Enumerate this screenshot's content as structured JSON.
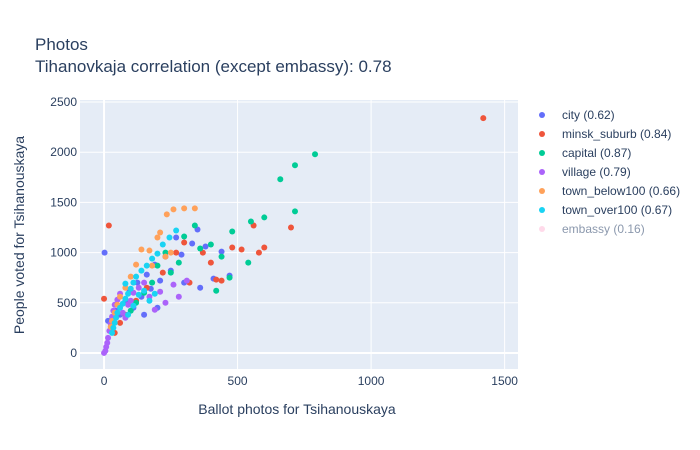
{
  "chart_data": {
    "type": "scatter",
    "title": "Photos",
    "subtitle": "Tihanovkaja correlation (except embassy): 0.78",
    "xlabel": "Ballot photos for Tsihanouskaya",
    "ylabel": "People voted for Tsihanouskaya",
    "xlim": [
      -90,
      1550
    ],
    "ylim": [
      -160,
      2520
    ],
    "x_ticks": [
      0,
      500,
      1000,
      1500
    ],
    "y_ticks": [
      0,
      500,
      1000,
      1500,
      2000,
      2500
    ],
    "grid": true,
    "legend_position": "right",
    "series": [
      {
        "name": "city (0.62)",
        "color": "#636efa",
        "visible": true,
        "points": [
          [
            2,
            1000
          ],
          [
            15,
            320
          ],
          [
            30,
            250
          ],
          [
            45,
            420
          ],
          [
            60,
            380
          ],
          [
            80,
            520
          ],
          [
            95,
            610
          ],
          [
            110,
            450
          ],
          [
            125,
            700
          ],
          [
            140,
            560
          ],
          [
            160,
            780
          ],
          [
            175,
            640
          ],
          [
            190,
            880
          ],
          [
            210,
            720
          ],
          [
            230,
            960
          ],
          [
            250,
            820
          ],
          [
            270,
            1150
          ],
          [
            290,
            980
          ],
          [
            330,
            1090
          ],
          [
            350,
            1230
          ],
          [
            380,
            1060
          ],
          [
            410,
            740
          ],
          [
            440,
            1010
          ],
          [
            470,
            770
          ],
          [
            360,
            650
          ],
          [
            300,
            700
          ],
          [
            200,
            450
          ],
          [
            150,
            380
          ]
        ]
      },
      {
        "name": "minsk_suburb (0.84)",
        "color": "#ef553b",
        "visible": true,
        "points": [
          [
            1420,
            2340
          ],
          [
            18,
            1270
          ],
          [
            0,
            540
          ],
          [
            700,
            1250
          ],
          [
            600,
            1050
          ],
          [
            580,
            1000
          ],
          [
            515,
            1030
          ],
          [
            560,
            1270
          ],
          [
            480,
            1050
          ],
          [
            440,
            720
          ],
          [
            420,
            730
          ],
          [
            400,
            900
          ],
          [
            370,
            1000
          ],
          [
            320,
            700
          ],
          [
            300,
            1100
          ],
          [
            270,
            1000
          ],
          [
            220,
            800
          ],
          [
            160,
            650
          ],
          [
            120,
            520
          ],
          [
            80,
            380
          ],
          [
            60,
            300
          ],
          [
            40,
            200
          ]
        ]
      },
      {
        "name": "capital (0.87)",
        "color": "#00cc96",
        "visible": true,
        "points": [
          [
            790,
            1980
          ],
          [
            715,
            1870
          ],
          [
            660,
            1730
          ],
          [
            715,
            1410
          ],
          [
            600,
            1350
          ],
          [
            550,
            1310
          ],
          [
            540,
            900
          ],
          [
            480,
            1210
          ],
          [
            470,
            750
          ],
          [
            440,
            960
          ],
          [
            400,
            1080
          ],
          [
            360,
            1040
          ],
          [
            340,
            1270
          ],
          [
            300,
            1160
          ],
          [
            280,
            900
          ],
          [
            250,
            800
          ],
          [
            230,
            1000
          ],
          [
            200,
            870
          ],
          [
            180,
            700
          ],
          [
            150,
            600
          ],
          [
            120,
            500
          ],
          [
            100,
            420
          ],
          [
            420,
            620
          ]
        ]
      },
      {
        "name": "village (0.79)",
        "color": "#ab63fa",
        "visible": true,
        "points": [
          [
            0,
            0
          ],
          [
            5,
            20
          ],
          [
            8,
            60
          ],
          [
            12,
            100
          ],
          [
            15,
            150
          ],
          [
            20,
            220
          ],
          [
            25,
            290
          ],
          [
            30,
            360
          ],
          [
            35,
            420
          ],
          [
            40,
            480
          ],
          [
            50,
            530
          ],
          [
            60,
            590
          ],
          [
            70,
            400
          ],
          [
            80,
            350
          ],
          [
            90,
            480
          ],
          [
            100,
            520
          ],
          [
            110,
            600
          ],
          [
            130,
            650
          ],
          [
            150,
            700
          ],
          [
            170,
            560
          ],
          [
            190,
            430
          ],
          [
            210,
            610
          ],
          [
            230,
            500
          ],
          [
            260,
            680
          ],
          [
            280,
            560
          ],
          [
            310,
            720
          ]
        ]
      },
      {
        "name": "town_below100 (0.66)",
        "color": "#ffa15a",
        "visible": true,
        "points": [
          [
            340,
            1440
          ],
          [
            300,
            1440
          ],
          [
            260,
            1430
          ],
          [
            235,
            1380
          ],
          [
            210,
            1200
          ],
          [
            200,
            1150
          ],
          [
            170,
            1020
          ],
          [
            140,
            1030
          ],
          [
            120,
            880
          ],
          [
            100,
            760
          ],
          [
            80,
            650
          ],
          [
            60,
            560
          ],
          [
            50,
            480
          ],
          [
            40,
            400
          ],
          [
            30,
            320
          ],
          [
            25,
            260
          ],
          [
            180,
            870
          ],
          [
            230,
            960
          ],
          [
            250,
            1000
          ]
        ]
      },
      {
        "name": "town_over100 (0.67)",
        "color": "#19d3f3",
        "visible": true,
        "points": [
          [
            270,
            1220
          ],
          [
            245,
            1150
          ],
          [
            220,
            1080
          ],
          [
            200,
            990
          ],
          [
            180,
            940
          ],
          [
            160,
            870
          ],
          [
            140,
            820
          ],
          [
            120,
            760
          ],
          [
            110,
            700
          ],
          [
            100,
            640
          ],
          [
            90,
            590
          ],
          [
            80,
            540
          ],
          [
            70,
            490
          ],
          [
            60,
            450
          ],
          [
            50,
            400
          ],
          [
            45,
            350
          ],
          [
            40,
            300
          ],
          [
            35,
            250
          ],
          [
            30,
            200
          ],
          [
            80,
            690
          ],
          [
            130,
            580
          ],
          [
            150,
            620
          ],
          [
            170,
            520
          ],
          [
            190,
            590
          ],
          [
            110,
            470
          ],
          [
            90,
            380
          ]
        ]
      },
      {
        "name": "embassy (0.16)",
        "color": "#ffb6d5",
        "visible": false,
        "points": []
      }
    ]
  }
}
